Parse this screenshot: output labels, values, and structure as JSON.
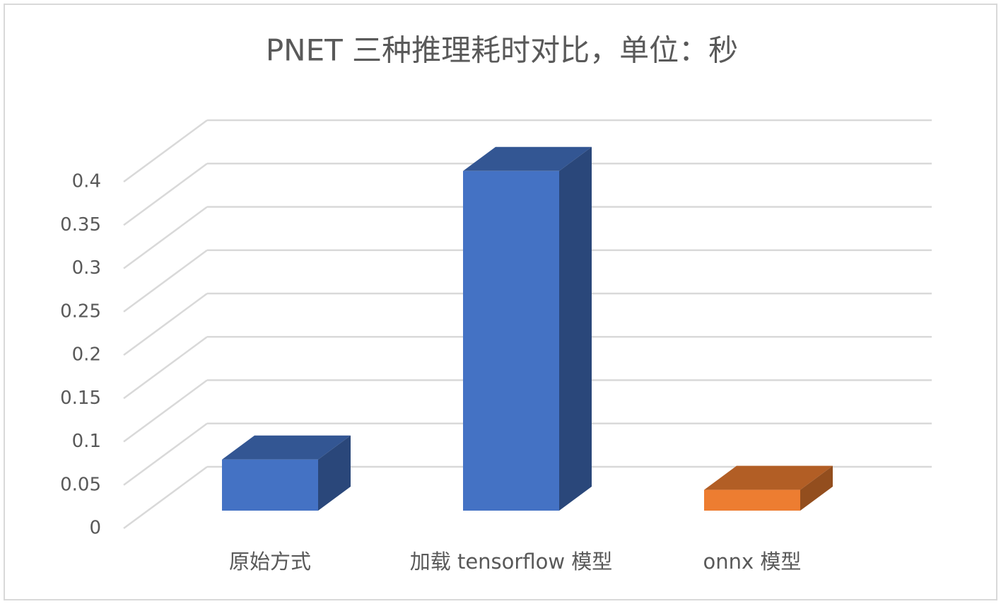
{
  "chart_data": {
    "type": "bar3d",
    "title": "PNET 三种推理耗时对比，单位：秒",
    "categories": [
      "原始方式",
      "加载 tensorflow 模型",
      "onnx 模型"
    ],
    "values": [
      0.059,
      0.392,
      0.024
    ],
    "colors": [
      "#4472c4",
      "#4472c4",
      "#ed7d31"
    ],
    "ylim": [
      0,
      0.4
    ],
    "yticks": [
      0,
      0.05,
      0.1,
      0.15,
      0.2,
      0.25,
      0.3,
      0.35,
      0.4
    ],
    "grid": true
  }
}
